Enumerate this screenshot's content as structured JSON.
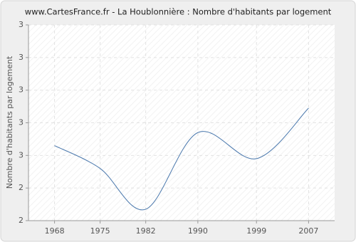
{
  "chart_data": {
    "type": "line",
    "title": "www.CartesFrance.fr - La Houblonnière : Nombre d'habitants par logement",
    "y_label": "Nombre d'habitants par logement",
    "x": [
      1968,
      1975,
      1982,
      1990,
      1999,
      2007
    ],
    "series": [
      {
        "name": "Nombre d'habitants par logement",
        "color": "#4a78ad",
        "values": [
          2.53,
          2.46,
          2.335,
          2.57,
          2.49,
          2.645
        ]
      }
    ],
    "xlim": [
      1964,
      2011
    ],
    "xticks": [
      1968,
      1975,
      1982,
      1990,
      1999,
      2007
    ],
    "ylim": [
      2.3,
      2.9
    ],
    "yticks": [
      {
        "value": 2.3,
        "label": "2"
      },
      {
        "value": 2.4,
        "label": "2"
      },
      {
        "value": 2.5,
        "label": "3"
      },
      {
        "value": 2.6,
        "label": "3"
      },
      {
        "value": 2.7,
        "label": "3"
      },
      {
        "value": 2.8,
        "label": "3"
      },
      {
        "value": 2.9,
        "label": "3"
      }
    ],
    "grid": true
  }
}
